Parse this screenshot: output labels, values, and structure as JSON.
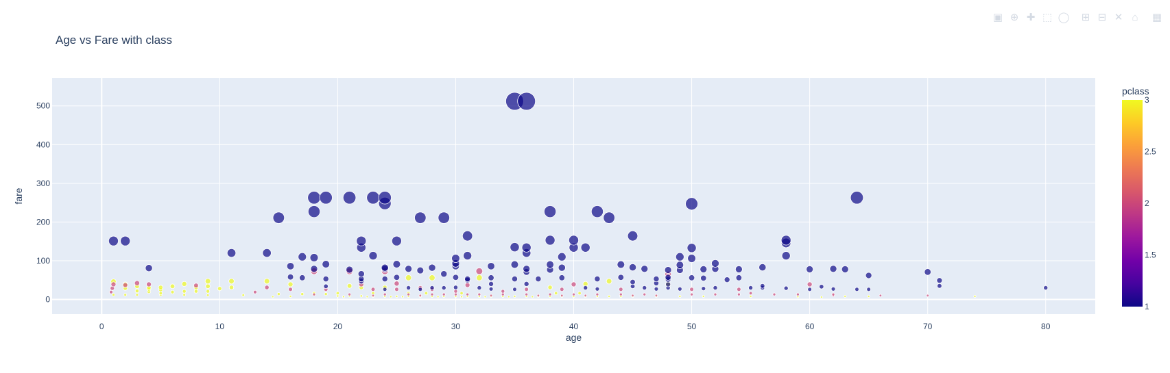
{
  "chart_data": {
    "type": "scatter",
    "title": "Age vs Fare with class",
    "xlabel": "age",
    "ylabel": "fare",
    "xlim": [
      -4.2,
      84.2
    ],
    "ylim": [
      -38,
      572
    ],
    "xticks": [
      0,
      10,
      20,
      30,
      40,
      50,
      60,
      70,
      80
    ],
    "yticks": [
      0,
      100,
      200,
      300,
      400,
      500
    ],
    "grid": true,
    "size_encoding": "fare",
    "color_encoding": "pclass",
    "colorbar": {
      "title": "pclass",
      "range": [
        1,
        3
      ],
      "ticks": [
        "1",
        "1.5",
        "2",
        "2.5",
        "3"
      ],
      "colorscale": [
        "#0d0887",
        "#46039f",
        "#7201a8",
        "#9c179e",
        "#bd3786",
        "#d8576b",
        "#ed7953",
        "#fb9f3a",
        "#fdca26",
        "#f0f921"
      ]
    },
    "colors": {
      "plot_bg": "#e5ecf6",
      "grid": "#ffffff",
      "marker_outline": "#ffffff"
    },
    "points": [
      [
        35,
        512,
        1
      ],
      [
        36,
        512,
        1
      ],
      [
        18,
        263,
        1
      ],
      [
        19,
        263,
        1
      ],
      [
        21,
        263,
        1
      ],
      [
        23,
        263,
        1
      ],
      [
        24,
        263,
        1
      ],
      [
        64,
        263,
        1
      ],
      [
        24,
        248,
        1
      ],
      [
        50,
        247,
        1
      ],
      [
        18,
        227,
        1
      ],
      [
        38,
        227,
        1
      ],
      [
        42,
        227,
        1
      ],
      [
        15,
        211,
        1
      ],
      [
        27,
        211,
        1
      ],
      [
        29,
        211,
        1
      ],
      [
        43,
        211,
        1
      ],
      [
        31,
        164,
        1
      ],
      [
        45,
        164,
        1
      ],
      [
        1,
        151,
        1
      ],
      [
        2,
        151,
        1
      ],
      [
        22,
        151,
        1
      ],
      [
        25,
        151,
        1
      ],
      [
        38,
        153,
        1
      ],
      [
        40,
        153,
        1
      ],
      [
        58,
        153,
        1
      ],
      [
        58,
        146,
        1
      ],
      [
        22,
        134,
        1
      ],
      [
        35,
        135,
        1
      ],
      [
        36,
        134,
        1
      ],
      [
        40,
        134,
        1
      ],
      [
        41,
        134,
        1
      ],
      [
        50,
        133,
        1
      ],
      [
        11,
        120,
        1
      ],
      [
        14,
        120,
        1
      ],
      [
        36,
        120,
        1
      ],
      [
        17,
        110,
        1
      ],
      [
        18,
        108,
        1
      ],
      [
        23,
        113,
        1
      ],
      [
        31,
        113,
        1
      ],
      [
        39,
        110,
        1
      ],
      [
        58,
        113,
        1
      ],
      [
        30,
        106,
        1
      ],
      [
        49,
        110,
        1
      ],
      [
        50,
        106,
        1
      ],
      [
        30,
        93,
        1
      ],
      [
        52,
        93,
        1
      ],
      [
        19,
        91,
        1
      ],
      [
        25,
        91,
        1
      ],
      [
        35,
        90,
        1
      ],
      [
        38,
        90,
        1
      ],
      [
        44,
        90,
        1
      ],
      [
        49,
        89,
        1
      ],
      [
        16,
        86,
        1
      ],
      [
        30,
        86,
        1
      ],
      [
        33,
        86,
        1
      ],
      [
        4,
        81,
        1
      ],
      [
        24,
        82,
        1
      ],
      [
        28,
        82,
        1
      ],
      [
        39,
        82,
        1
      ],
      [
        45,
        83,
        1
      ],
      [
        56,
        83,
        1
      ],
      [
        18,
        79,
        1
      ],
      [
        24,
        79,
        1
      ],
      [
        26,
        79,
        1
      ],
      [
        36,
        79,
        1
      ],
      [
        46,
        79,
        1
      ],
      [
        51,
        78,
        1
      ],
      [
        52,
        79,
        1
      ],
      [
        60,
        78,
        1
      ],
      [
        62,
        79,
        1
      ],
      [
        63,
        78,
        1
      ],
      [
        27,
        75,
        1
      ],
      [
        38,
        77,
        1
      ],
      [
        48,
        76,
        1
      ],
      [
        54,
        78,
        1
      ],
      [
        21,
        77,
        1
      ],
      [
        22,
        66,
        1
      ],
      [
        29,
        66,
        1
      ],
      [
        36,
        71,
        1
      ],
      [
        49,
        76,
        1
      ],
      [
        70,
        71,
        1
      ],
      [
        65,
        62,
        1
      ],
      [
        16,
        58,
        1
      ],
      [
        25,
        57,
        1
      ],
      [
        30,
        57,
        1
      ],
      [
        33,
        56,
        1
      ],
      [
        39,
        56,
        1
      ],
      [
        44,
        57,
        1
      ],
      [
        48,
        57,
        1
      ],
      [
        50,
        56,
        1
      ],
      [
        51,
        55,
        1
      ],
      [
        54,
        56,
        1
      ],
      [
        17,
        56,
        1
      ],
      [
        19,
        53,
        1
      ],
      [
        22,
        53,
        1
      ],
      [
        24,
        53,
        1
      ],
      [
        31,
        53,
        1
      ],
      [
        35,
        53,
        1
      ],
      [
        37,
        53,
        1
      ],
      [
        42,
        53,
        1
      ],
      [
        47,
        53,
        1
      ],
      [
        48,
        52,
        1
      ],
      [
        53,
        51,
        1
      ],
      [
        71,
        49,
        1
      ],
      [
        22,
        47,
        1
      ],
      [
        31,
        50,
        1
      ],
      [
        45,
        45,
        1
      ],
      [
        47,
        42,
        1
      ],
      [
        33,
        40,
        1
      ],
      [
        36,
        40,
        1
      ],
      [
        48,
        39,
        1
      ],
      [
        56,
        35,
        1
      ],
      [
        71,
        35,
        1
      ],
      [
        19,
        34,
        1
      ],
      [
        45,
        34,
        1
      ],
      [
        48,
        30,
        1
      ],
      [
        52,
        30,
        1
      ],
      [
        56,
        30,
        1
      ],
      [
        61,
        33,
        1
      ],
      [
        26,
        30,
        1
      ],
      [
        28,
        30,
        1
      ],
      [
        29,
        30,
        1
      ],
      [
        30,
        31,
        1
      ],
      [
        32,
        30,
        1
      ],
      [
        41,
        30,
        1
      ],
      [
        46,
        30,
        1
      ],
      [
        49,
        27,
        1
      ],
      [
        51,
        28,
        1
      ],
      [
        55,
        30,
        1
      ],
      [
        58,
        29,
        1
      ],
      [
        60,
        26,
        1
      ],
      [
        62,
        27,
        1
      ],
      [
        64,
        26,
        1
      ],
      [
        65,
        26,
        1
      ],
      [
        80,
        30,
        1
      ],
      [
        24,
        26,
        1
      ],
      [
        35,
        26,
        1
      ],
      [
        42,
        27,
        1
      ],
      [
        47,
        27,
        1
      ],
      [
        27,
        26,
        1
      ],
      [
        33,
        27,
        1
      ],
      [
        1,
        39,
        2
      ],
      [
        2,
        37,
        2
      ],
      [
        3,
        42,
        2
      ],
      [
        4,
        39,
        2
      ],
      [
        8,
        36,
        2
      ],
      [
        14,
        31,
        2
      ],
      [
        16,
        26,
        2
      ],
      [
        18,
        73,
        2
      ],
      [
        21,
        73,
        2
      ],
      [
        22,
        39,
        2
      ],
      [
        24,
        73,
        2
      ],
      [
        25,
        41,
        2
      ],
      [
        27,
        30,
        2
      ],
      [
        31,
        37,
        2
      ],
      [
        32,
        73,
        2
      ],
      [
        40,
        39,
        2
      ],
      [
        48,
        65,
        2
      ],
      [
        60,
        39,
        2
      ],
      [
        19,
        26,
        2
      ],
      [
        23,
        26,
        2
      ],
      [
        25,
        26,
        2
      ],
      [
        28,
        26,
        2
      ],
      [
        30,
        21,
        2
      ],
      [
        34,
        21,
        2
      ],
      [
        36,
        26,
        2
      ],
      [
        39,
        26,
        2
      ],
      [
        44,
        26,
        2
      ],
      [
        50,
        26,
        2
      ],
      [
        54,
        26,
        2
      ],
      [
        57,
        13,
        2
      ],
      [
        62,
        10,
        2
      ],
      [
        66,
        10,
        2
      ],
      [
        70,
        10,
        2
      ],
      [
        0.8,
        19,
        2
      ],
      [
        0.9,
        29,
        2
      ],
      [
        13,
        19,
        2
      ],
      [
        18,
        13,
        2
      ],
      [
        21,
        13,
        2
      ],
      [
        24,
        13,
        2
      ],
      [
        26,
        13,
        2
      ],
      [
        28,
        13,
        2
      ],
      [
        29,
        13,
        2
      ],
      [
        30,
        13,
        2
      ],
      [
        31,
        13,
        2
      ],
      [
        32,
        13,
        2
      ],
      [
        34,
        13,
        2
      ],
      [
        36,
        13,
        2
      ],
      [
        38,
        13,
        2
      ],
      [
        40,
        13,
        2
      ],
      [
        42,
        13,
        2
      ],
      [
        44,
        13,
        2
      ],
      [
        46,
        13,
        2
      ],
      [
        50,
        13,
        2
      ],
      [
        52,
        13,
        2
      ],
      [
        54,
        13,
        2
      ],
      [
        55,
        16,
        2
      ],
      [
        59,
        13,
        2
      ],
      [
        62,
        13,
        2
      ],
      [
        23,
        10,
        2
      ],
      [
        27,
        10,
        2
      ],
      [
        33,
        10,
        2
      ],
      [
        37,
        10,
        2
      ],
      [
        39,
        10,
        2
      ],
      [
        41,
        10,
        2
      ],
      [
        45,
        10,
        2
      ],
      [
        47,
        10,
        2
      ],
      [
        1,
        46,
        3
      ],
      [
        2,
        39,
        3
      ],
      [
        3,
        34,
        3
      ],
      [
        4,
        31,
        3
      ],
      [
        5,
        31,
        3
      ],
      [
        6,
        34,
        3
      ],
      [
        7,
        40,
        3
      ],
      [
        8,
        31,
        3
      ],
      [
        9,
        47,
        3
      ],
      [
        10,
        28,
        3
      ],
      [
        11,
        47,
        3
      ],
      [
        14,
        47,
        3
      ],
      [
        16,
        39,
        3
      ],
      [
        21,
        35,
        3
      ],
      [
        22,
        31,
        3
      ],
      [
        24,
        31,
        3
      ],
      [
        26,
        56,
        3
      ],
      [
        28,
        56,
        3
      ],
      [
        32,
        56,
        3
      ],
      [
        38,
        31,
        3
      ],
      [
        41,
        40,
        3
      ],
      [
        43,
        47,
        3
      ],
      [
        48,
        39,
        3
      ],
      [
        2,
        29,
        3
      ],
      [
        4,
        27,
        3
      ],
      [
        5,
        25,
        3
      ],
      [
        9,
        34,
        3
      ],
      [
        11,
        31,
        3
      ],
      [
        26,
        16,
        3
      ],
      [
        3,
        22,
        3
      ],
      [
        4,
        20,
        3
      ],
      [
        5,
        16,
        3
      ],
      [
        6,
        19,
        3
      ],
      [
        7,
        21,
        3
      ],
      [
        8,
        21,
        3
      ],
      [
        9,
        21,
        3
      ],
      [
        15,
        14,
        3
      ],
      [
        17,
        14,
        3
      ],
      [
        18,
        14,
        3
      ],
      [
        19,
        14,
        3
      ],
      [
        20,
        9,
        3
      ],
      [
        21,
        9,
        3
      ],
      [
        22,
        9,
        3
      ],
      [
        23,
        8,
        3
      ],
      [
        24,
        8,
        3
      ],
      [
        25,
        8,
        3
      ],
      [
        26,
        8,
        3
      ],
      [
        27,
        8,
        3
      ],
      [
        28,
        8,
        3
      ],
      [
        29,
        8,
        3
      ],
      [
        30,
        8,
        3
      ],
      [
        31,
        8,
        3
      ],
      [
        32,
        8,
        3
      ],
      [
        33,
        8,
        3
      ],
      [
        34,
        8,
        3
      ],
      [
        35,
        8,
        3
      ],
      [
        36,
        8,
        3
      ],
      [
        37,
        8,
        3
      ],
      [
        38,
        8,
        3
      ],
      [
        39,
        8,
        3
      ],
      [
        40,
        8,
        3
      ],
      [
        41,
        8,
        3
      ],
      [
        42,
        8,
        3
      ],
      [
        43,
        8,
        3
      ],
      [
        44,
        8,
        3
      ],
      [
        45,
        8,
        3
      ],
      [
        47,
        8,
        3
      ],
      [
        49,
        8,
        3
      ],
      [
        51,
        8,
        3
      ],
      [
        55,
        8,
        3
      ],
      [
        59,
        7,
        3
      ],
      [
        61,
        6,
        3
      ],
      [
        63,
        8,
        3
      ],
      [
        65,
        8,
        3
      ],
      [
        74,
        8,
        3
      ],
      [
        12,
        11,
        3
      ],
      [
        14.5,
        7,
        3
      ],
      [
        16,
        8,
        3
      ],
      [
        20.5,
        7,
        3
      ],
      [
        22.5,
        7,
        3
      ],
      [
        24.5,
        7,
        3
      ],
      [
        25.5,
        7,
        3
      ],
      [
        28.5,
        7,
        3
      ],
      [
        30.5,
        7,
        3
      ],
      [
        32.5,
        7,
        3
      ],
      [
        34.5,
        7,
        3
      ],
      [
        36.5,
        7,
        3
      ],
      [
        38.5,
        16,
        3
      ],
      [
        40.5,
        16,
        3
      ],
      [
        30.5,
        16,
        3
      ],
      [
        27.5,
        16,
        3
      ],
      [
        23,
        16,
        3
      ],
      [
        20,
        16,
        3
      ],
      [
        18,
        16,
        3
      ],
      [
        9,
        11,
        3
      ],
      [
        7,
        12,
        3
      ],
      [
        5,
        12,
        3
      ],
      [
        3,
        12,
        3
      ],
      [
        1,
        12,
        3
      ],
      [
        2,
        12,
        3
      ]
    ]
  },
  "toolbar": {
    "buttons": [
      {
        "name": "camera-icon",
        "glyph": "▣"
      },
      {
        "name": "zoom-icon",
        "glyph": "⊕"
      },
      {
        "name": "pan-icon",
        "glyph": "✚"
      },
      {
        "name": "box-select-icon",
        "glyph": "⬚"
      },
      {
        "name": "lasso-select-icon",
        "glyph": "◯"
      },
      {
        "name": "zoom-in-icon",
        "glyph": "⊞"
      },
      {
        "name": "zoom-out-icon",
        "glyph": "⊟"
      },
      {
        "name": "autoscale-icon",
        "glyph": "✕"
      },
      {
        "name": "reset-axes-icon",
        "glyph": "⌂"
      },
      {
        "name": "plotly-logo-icon",
        "glyph": "▦"
      }
    ]
  }
}
